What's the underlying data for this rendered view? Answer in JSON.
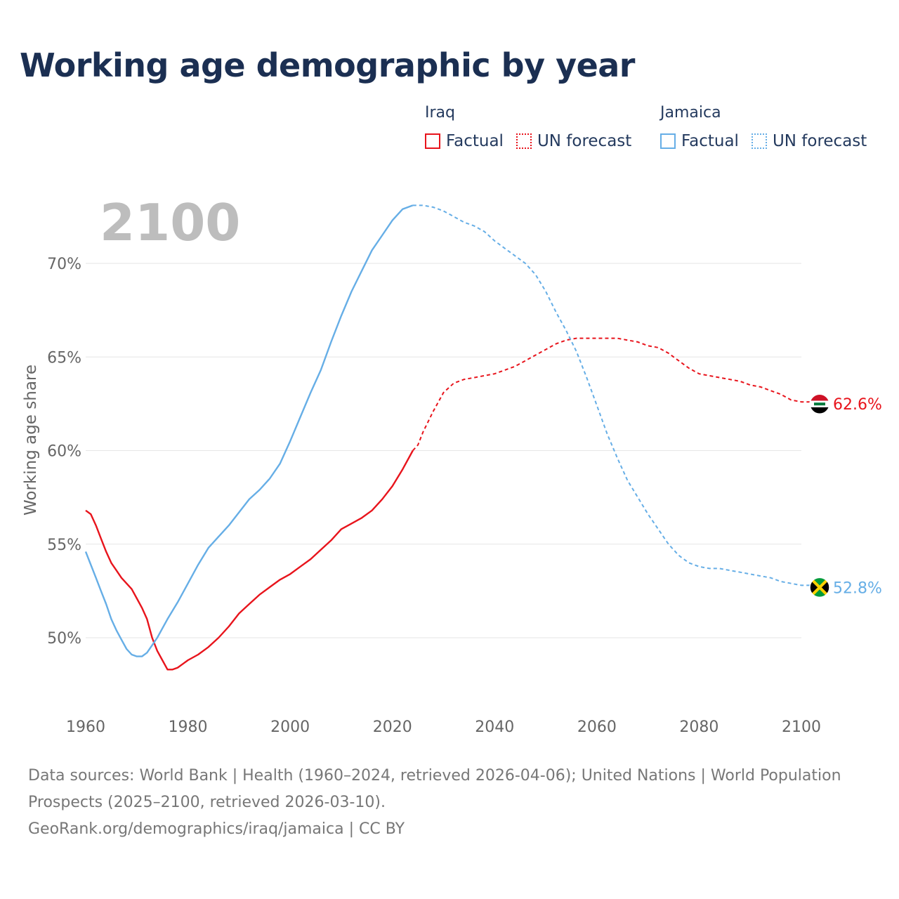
{
  "title": "Working age demographic by year",
  "year_label": "2100",
  "legend": {
    "groups": [
      {
        "name": "Iraq",
        "factual": "Factual",
        "forecast": "UN forecast",
        "color": "#e8141c"
      },
      {
        "name": "Jamaica",
        "factual": "Factual",
        "forecast": "UN forecast",
        "color": "#66aee6"
      }
    ]
  },
  "chart_data": {
    "type": "line",
    "title": "Working age demographic by year",
    "xlabel": "",
    "ylabel": "Working age share",
    "xlim": [
      1960,
      2104
    ],
    "ylim": [
      46.5,
      73
    ],
    "x_ticks": [
      1960,
      1980,
      2000,
      2020,
      2040,
      2060,
      2080,
      2100
    ],
    "y_ticks": [
      50,
      55,
      60,
      65,
      70
    ],
    "y_tick_labels": [
      "50%",
      "55%",
      "60%",
      "65%",
      "70%"
    ],
    "grid": true,
    "factual_end_year": 2024,
    "series": [
      {
        "name": "Iraq",
        "color": "#e8141c",
        "end_label": "62.6%",
        "flag": "iraq-flag",
        "points": [
          [
            1960,
            56.8
          ],
          [
            1961,
            56.6
          ],
          [
            1962,
            56.0
          ],
          [
            1963,
            55.3
          ],
          [
            1964,
            54.6
          ],
          [
            1965,
            54.0
          ],
          [
            1966,
            53.6
          ],
          [
            1967,
            53.2
          ],
          [
            1968,
            52.9
          ],
          [
            1969,
            52.6
          ],
          [
            1970,
            52.1
          ],
          [
            1971,
            51.6
          ],
          [
            1972,
            51.0
          ],
          [
            1973,
            50.0
          ],
          [
            1974,
            49.3
          ],
          [
            1975,
            48.8
          ],
          [
            1976,
            48.3
          ],
          [
            1977,
            48.3
          ],
          [
            1978,
            48.4
          ],
          [
            1979,
            48.6
          ],
          [
            1980,
            48.8
          ],
          [
            1982,
            49.1
          ],
          [
            1984,
            49.5
          ],
          [
            1986,
            50.0
          ],
          [
            1988,
            50.6
          ],
          [
            1990,
            51.3
          ],
          [
            1992,
            51.8
          ],
          [
            1994,
            52.3
          ],
          [
            1996,
            52.7
          ],
          [
            1998,
            53.1
          ],
          [
            2000,
            53.4
          ],
          [
            2002,
            53.8
          ],
          [
            2004,
            54.2
          ],
          [
            2006,
            54.7
          ],
          [
            2008,
            55.2
          ],
          [
            2010,
            55.8
          ],
          [
            2012,
            56.1
          ],
          [
            2014,
            56.4
          ],
          [
            2016,
            56.8
          ],
          [
            2018,
            57.4
          ],
          [
            2020,
            58.1
          ],
          [
            2022,
            59.0
          ],
          [
            2024,
            60.0
          ],
          [
            2025,
            60.3
          ],
          [
            2026,
            61.0
          ],
          [
            2028,
            62.1
          ],
          [
            2030,
            63.1
          ],
          [
            2032,
            63.6
          ],
          [
            2034,
            63.8
          ],
          [
            2036,
            63.9
          ],
          [
            2038,
            64.0
          ],
          [
            2040,
            64.1
          ],
          [
            2042,
            64.3
          ],
          [
            2044,
            64.5
          ],
          [
            2046,
            64.8
          ],
          [
            2048,
            65.1
          ],
          [
            2050,
            65.4
          ],
          [
            2052,
            65.7
          ],
          [
            2054,
            65.9
          ],
          [
            2056,
            66.0
          ],
          [
            2058,
            66.0
          ],
          [
            2060,
            66.0
          ],
          [
            2062,
            66.0
          ],
          [
            2064,
            66.0
          ],
          [
            2066,
            65.9
          ],
          [
            2068,
            65.8
          ],
          [
            2070,
            65.6
          ],
          [
            2072,
            65.5
          ],
          [
            2074,
            65.2
          ],
          [
            2076,
            64.8
          ],
          [
            2078,
            64.4
          ],
          [
            2080,
            64.1
          ],
          [
            2082,
            64.0
          ],
          [
            2084,
            63.9
          ],
          [
            2086,
            63.8
          ],
          [
            2088,
            63.7
          ],
          [
            2090,
            63.5
          ],
          [
            2092,
            63.4
          ],
          [
            2094,
            63.2
          ],
          [
            2096,
            63.0
          ],
          [
            2098,
            62.7
          ],
          [
            2100,
            62.6
          ]
        ]
      },
      {
        "name": "Jamaica",
        "color": "#66aee6",
        "end_label": "52.8%",
        "flag": "jamaica-flag",
        "points": [
          [
            1960,
            54.6
          ],
          [
            1961,
            53.9
          ],
          [
            1962,
            53.2
          ],
          [
            1963,
            52.5
          ],
          [
            1964,
            51.8
          ],
          [
            1965,
            51.0
          ],
          [
            1966,
            50.4
          ],
          [
            1967,
            49.9
          ],
          [
            1968,
            49.4
          ],
          [
            1969,
            49.1
          ],
          [
            1970,
            49.0
          ],
          [
            1971,
            49.0
          ],
          [
            1972,
            49.2
          ],
          [
            1973,
            49.6
          ],
          [
            1974,
            50.0
          ],
          [
            1975,
            50.5
          ],
          [
            1976,
            51.0
          ],
          [
            1978,
            51.9
          ],
          [
            1980,
            52.9
          ],
          [
            1982,
            53.9
          ],
          [
            1984,
            54.8
          ],
          [
            1986,
            55.4
          ],
          [
            1988,
            56.0
          ],
          [
            1990,
            56.7
          ],
          [
            1992,
            57.4
          ],
          [
            1994,
            57.9
          ],
          [
            1996,
            58.5
          ],
          [
            1998,
            59.3
          ],
          [
            2000,
            60.5
          ],
          [
            2002,
            61.8
          ],
          [
            2004,
            63.1
          ],
          [
            2006,
            64.3
          ],
          [
            2008,
            65.8
          ],
          [
            2010,
            67.2
          ],
          [
            2012,
            68.5
          ],
          [
            2014,
            69.6
          ],
          [
            2016,
            70.7
          ],
          [
            2018,
            71.5
          ],
          [
            2020,
            72.3
          ],
          [
            2022,
            72.9
          ],
          [
            2024,
            73.1
          ],
          [
            2026,
            73.1
          ],
          [
            2028,
            73.0
          ],
          [
            2030,
            72.8
          ],
          [
            2032,
            72.5
          ],
          [
            2034,
            72.2
          ],
          [
            2036,
            72.0
          ],
          [
            2038,
            71.7
          ],
          [
            2040,
            71.2
          ],
          [
            2042,
            70.8
          ],
          [
            2044,
            70.4
          ],
          [
            2046,
            70.0
          ],
          [
            2048,
            69.4
          ],
          [
            2050,
            68.5
          ],
          [
            2052,
            67.4
          ],
          [
            2054,
            66.4
          ],
          [
            2056,
            65.3
          ],
          [
            2058,
            63.9
          ],
          [
            2060,
            62.4
          ],
          [
            2062,
            60.9
          ],
          [
            2064,
            59.6
          ],
          [
            2066,
            58.4
          ],
          [
            2068,
            57.5
          ],
          [
            2070,
            56.6
          ],
          [
            2072,
            55.8
          ],
          [
            2074,
            55.0
          ],
          [
            2076,
            54.4
          ],
          [
            2078,
            54.0
          ],
          [
            2080,
            53.8
          ],
          [
            2082,
            53.7
          ],
          [
            2084,
            53.7
          ],
          [
            2086,
            53.6
          ],
          [
            2088,
            53.5
          ],
          [
            2090,
            53.4
          ],
          [
            2092,
            53.3
          ],
          [
            2094,
            53.2
          ],
          [
            2096,
            53.0
          ],
          [
            2098,
            52.9
          ],
          [
            2100,
            52.8
          ]
        ]
      }
    ]
  },
  "footer": {
    "sources": "Data sources: World Bank | Health (1960–2024, retrieved 2026-04-06); United Nations | World Population Prospects (2025–2100, retrieved 2026-03-10).",
    "attribution": "GeoRank.org/demographics/iraq/jamaica | CC BY"
  }
}
